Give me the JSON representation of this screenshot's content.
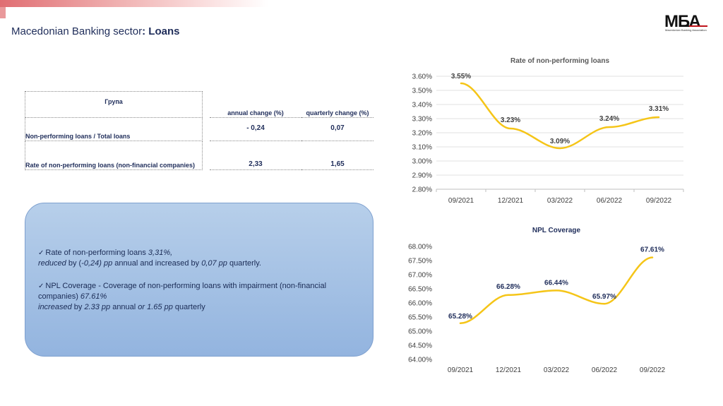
{
  "header": {
    "title_prefix": "Macedonian Banking sector",
    "title_bold": ": Loans",
    "logo_text": "МБА",
    "logo_sub": "Macedonian Banking Association"
  },
  "table": {
    "col_group": "Група",
    "col_annual": "annual change (%)",
    "col_quarterly": "quarterly change (%)",
    "rows": [
      {
        "label": "Non-performing loans  / Total loans",
        "annual": "- 0,24",
        "quarterly": "0,07"
      },
      {
        "label": "Rate of non-performing loans (non-financial companies)",
        "annual": "2,33",
        "quarterly": "1,65"
      }
    ]
  },
  "notes": {
    "check": "✓",
    "n1_a": "Rate of non-performing loans ",
    "n1_b": "3,31%,",
    "n1_c": "reduced",
    "n1_d": " by (",
    "n1_e": "-0,24) pp",
    "n1_f": " annual and increased by ",
    "n1_g": "0,07 pp",
    "n1_h": " quarterly.",
    "n2_a": "NPL Coverage - Coverage of non-performing loans with impairment (non-financial companies) ",
    "n2_b": "67.61%",
    "n2_c": "increased",
    "n2_d": " by ",
    "n2_e": "2.33 pp",
    "n2_f": " annual ",
    "n2_g": "or 1.65 pp",
    "n2_h": " quarterly"
  },
  "colors": {
    "line": "#f5c518",
    "grid": "#d9d9d9",
    "text": "#1f2d5a",
    "axis_text": "#404040"
  },
  "chart_data": [
    {
      "type": "line",
      "title": "Rate of non-performing loans",
      "x": [
        "09/2021",
        "12/2021",
        "03/2022",
        "06/2022",
        "09/2022"
      ],
      "series": [
        {
          "values": [
            3.55,
            3.23,
            3.09,
            3.24,
            3.31
          ]
        }
      ],
      "data_labels": [
        "3.55%",
        "3.23%",
        "3.09%",
        "3.24%",
        "3.31%"
      ],
      "ylim": [
        2.8,
        3.6
      ],
      "yticks": [
        "2.80%",
        "2.90%",
        "3.00%",
        "3.10%",
        "3.20%",
        "3.30%",
        "3.40%",
        "3.50%",
        "3.60%"
      ],
      "grid": true
    },
    {
      "type": "line",
      "title": "NPL Coverage",
      "x": [
        "09/2021",
        "12/2021",
        "03/2022",
        "06/2022",
        "09/2022"
      ],
      "series": [
        {
          "values": [
            65.28,
            66.28,
            66.44,
            65.97,
            67.61
          ]
        }
      ],
      "data_labels": [
        "65.28%",
        "66.28%",
        "66.44%",
        "65.97%",
        "67.61%"
      ],
      "ylim": [
        64.0,
        68.0
      ],
      "yticks": [
        "64.00%",
        "64.50%",
        "65.00%",
        "65.50%",
        "66.00%",
        "66.50%",
        "67.00%",
        "67.50%",
        "68.00%"
      ],
      "grid": false
    }
  ]
}
